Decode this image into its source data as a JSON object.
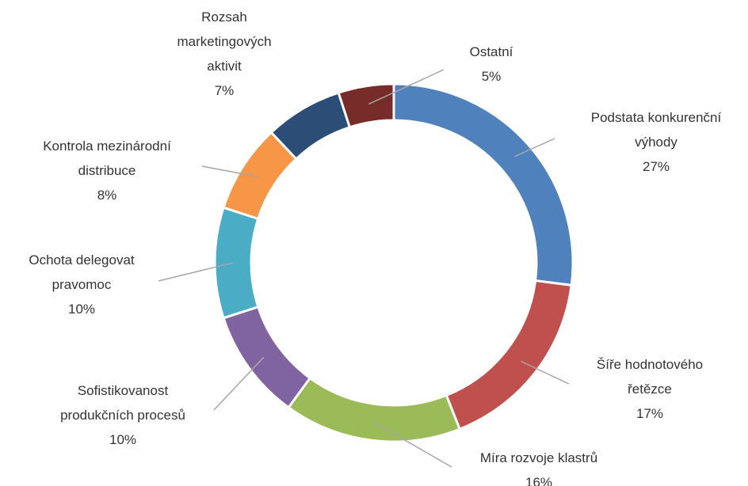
{
  "chart_data": {
    "type": "donut",
    "categories": [
      "Podstata konkurenční\nvýhody",
      "Šíře hodnotového\nřetězce",
      "Míra rozvoje klastrů",
      "Sofistikovanost\nprodukčních procesů",
      "Ochota delegovat\npravomoc",
      "Kontrola mezinárodní\ndistribuce",
      "Rozsah\nmarketingových\naktivit",
      "Ostatní"
    ],
    "values": [
      27,
      17,
      16,
      10,
      10,
      8,
      7,
      5
    ],
    "value_labels": [
      "27%",
      "17%",
      "16%",
      "10%",
      "10%",
      "8%",
      "7%",
      "5%"
    ],
    "colors": [
      "#4f81bd",
      "#c0504d",
      "#9bbb59",
      "#8064a2",
      "#4bacc6",
      "#f79646",
      "#2c4d75",
      "#772c2a"
    ]
  }
}
